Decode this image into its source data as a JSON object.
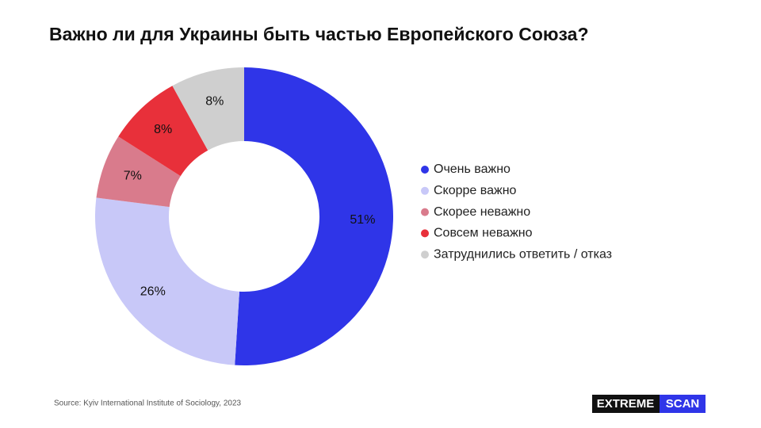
{
  "chart_data": {
    "type": "donut",
    "title": "Важно ли для Украины быть частью Европейского Союза?",
    "categories": [
      "Очень важно",
      "Скорре важно",
      "Скорее неважно",
      "Совсем неважно",
      "Затруднились ответить / отказ"
    ],
    "values": [
      51,
      26,
      7,
      8,
      8
    ],
    "value_labels": [
      "51%",
      "26%",
      "7%",
      "8%",
      "8%"
    ],
    "colors": [
      "#2f35e8",
      "#c8c8f8",
      "#d97b8c",
      "#e8303a",
      "#cfcfcf"
    ],
    "legend": "right"
  },
  "source": "Source: Kyiv International Institute of Sociology, 2023",
  "brand": [
    "EXTREME",
    "SCAN"
  ]
}
